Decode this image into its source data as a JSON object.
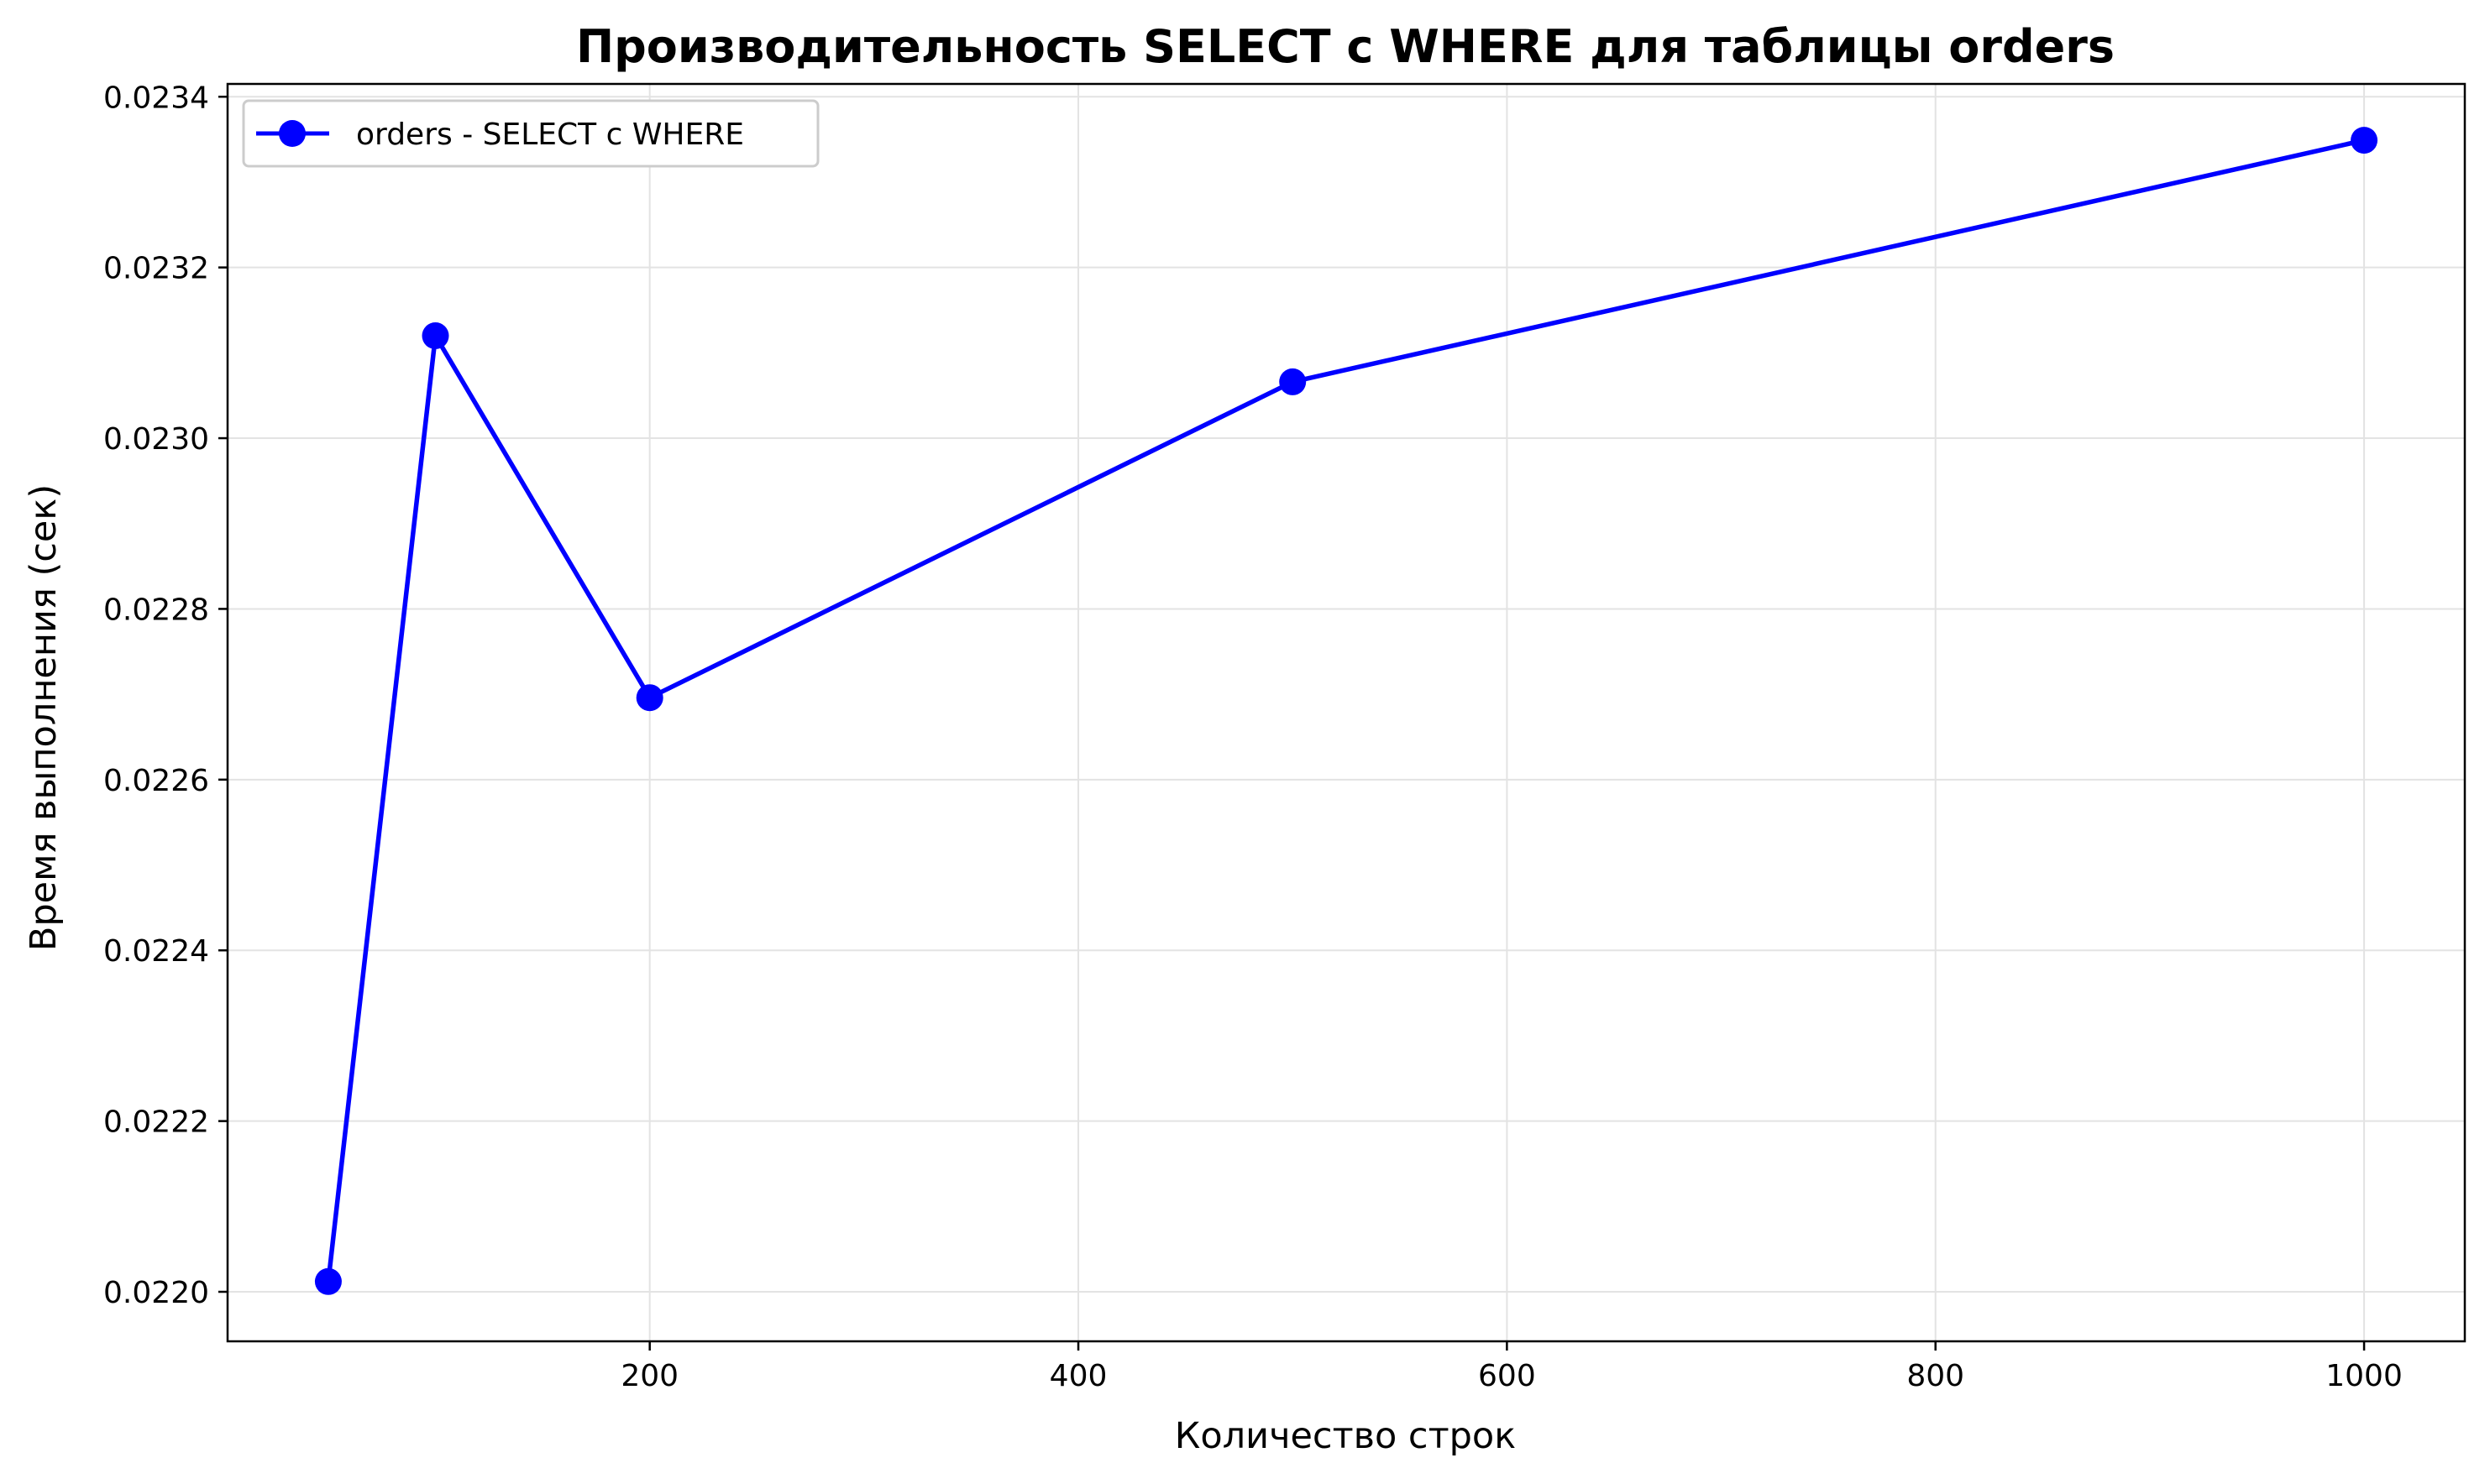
{
  "chart_data": {
    "type": "line",
    "title": "Производительность SELECT с WHERE для таблицы orders",
    "xlabel": "Количество строк",
    "ylabel": "Время выполнения (сек)",
    "xlim": [
      3,
      1047
    ],
    "ylim": [
      0.021942,
      0.023415
    ],
    "x_ticks": [
      200,
      400,
      600,
      800,
      1000
    ],
    "x_tick_labels": [
      "200",
      "400",
      "600",
      "800",
      "1000"
    ],
    "y_ticks": [
      0.022,
      0.0222,
      0.0224,
      0.0226,
      0.0228,
      0.023,
      0.0232,
      0.0234
    ],
    "y_tick_labels": [
      "0.0220",
      "0.0222",
      "0.0224",
      "0.0226",
      "0.0228",
      "0.0230",
      "0.0232",
      "0.0234"
    ],
    "grid": true,
    "legend_position": "top-left",
    "series": [
      {
        "name": "orders - SELECT с WHERE",
        "color": "#0000ff",
        "marker": "circle",
        "x": [
          50,
          100,
          200,
          500,
          1000
        ],
        "y": [
          0.022012,
          0.02312,
          0.022696,
          0.023066,
          0.023349
        ]
      }
    ]
  }
}
